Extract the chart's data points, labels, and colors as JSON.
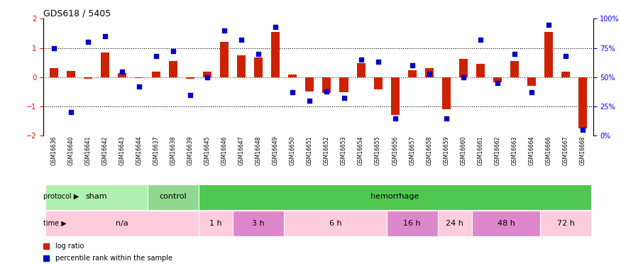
{
  "title": "GDS618 / 5405",
  "samples": [
    "GSM16636",
    "GSM16640",
    "GSM16641",
    "GSM16642",
    "GSM16643",
    "GSM16644",
    "GSM16637",
    "GSM16638",
    "GSM16639",
    "GSM16645",
    "GSM16646",
    "GSM16647",
    "GSM16648",
    "GSM16649",
    "GSM16650",
    "GSM16651",
    "GSM16652",
    "GSM16653",
    "GSM16654",
    "GSM16655",
    "GSM16656",
    "GSM16657",
    "GSM16658",
    "GSM16659",
    "GSM16660",
    "GSM16661",
    "GSM16662",
    "GSM16663",
    "GSM16664",
    "GSM16666",
    "GSM16667",
    "GSM16668"
  ],
  "log_ratio": [
    0.32,
    0.22,
    -0.05,
    0.85,
    0.15,
    -0.03,
    0.18,
    0.55,
    -0.05,
    0.2,
    1.2,
    0.75,
    0.68,
    1.55,
    0.08,
    -0.48,
    -0.55,
    -0.52,
    0.48,
    -0.42,
    -1.3,
    0.24,
    0.3,
    -1.1,
    0.62,
    0.45,
    -0.18,
    0.55,
    -0.3,
    1.55,
    0.2,
    -1.75
  ],
  "percentile": [
    75,
    20,
    80,
    85,
    55,
    42,
    68,
    72,
    35,
    50,
    90,
    82,
    70,
    93,
    37,
    30,
    38,
    32,
    65,
    63,
    15,
    60,
    53,
    15,
    50,
    82,
    45,
    70,
    37,
    95,
    68,
    5
  ],
  "protocol_groups": [
    {
      "label": "sham",
      "start": 0,
      "end": 6,
      "color": "#b0f0b0"
    },
    {
      "label": "control",
      "start": 6,
      "end": 9,
      "color": "#90d890"
    },
    {
      "label": "hemorrhage",
      "start": 9,
      "end": 32,
      "color": "#50c850"
    }
  ],
  "time_groups": [
    {
      "label": "n/a",
      "start": 0,
      "end": 9,
      "color": "#ffccdd"
    },
    {
      "label": "1 h",
      "start": 9,
      "end": 11,
      "color": "#ffccdd"
    },
    {
      "label": "3 h",
      "start": 11,
      "end": 14,
      "color": "#dd88cc"
    },
    {
      "label": "6 h",
      "start": 14,
      "end": 20,
      "color": "#ffccdd"
    },
    {
      "label": "16 h",
      "start": 20,
      "end": 23,
      "color": "#dd88cc"
    },
    {
      "label": "24 h",
      "start": 23,
      "end": 25,
      "color": "#ffccdd"
    },
    {
      "label": "48 h",
      "start": 25,
      "end": 29,
      "color": "#dd88cc"
    },
    {
      "label": "72 h",
      "start": 29,
      "end": 32,
      "color": "#ffccdd"
    }
  ],
  "bar_color": "#cc2200",
  "dot_color": "#0000cc",
  "ylim_left": [
    -2.0,
    2.0
  ],
  "yticks_left": [
    -2,
    -1,
    0,
    1,
    2
  ],
  "yticks_right": [
    0,
    25,
    50,
    75,
    100
  ],
  "yticklabels_right": [
    "0%",
    "25%",
    "50%",
    "75%",
    "100%"
  ]
}
